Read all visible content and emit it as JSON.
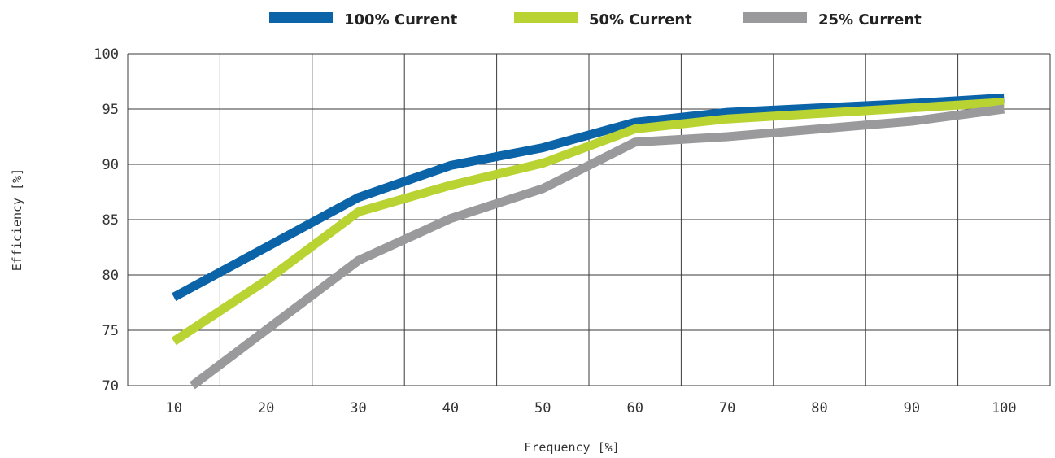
{
  "chart_data": {
    "type": "line",
    "xlabel": "Frequency [%]",
    "ylabel": "Efficiency [%]",
    "ylim": [
      70,
      100
    ],
    "y_ticks": [
      "70",
      "75",
      "80",
      "85",
      "90",
      "95",
      "100"
    ],
    "x_ticks": [
      "10",
      "20",
      "30",
      "40",
      "50",
      "60",
      "70",
      "80",
      "90",
      "100"
    ],
    "grid": true,
    "legend_position": "top",
    "series": [
      {
        "name": "100% Current",
        "color": "#0b63a8",
        "points": [
          [
            10,
            78.0
          ],
          [
            30,
            87.0
          ],
          [
            40,
            89.9
          ],
          [
            50,
            91.5
          ],
          [
            60,
            93.8
          ],
          [
            70,
            94.7
          ],
          [
            80,
            95.1
          ],
          [
            90,
            95.5
          ],
          [
            100,
            96.0
          ]
        ]
      },
      {
        "name": "50% Current",
        "color": "#b9d432",
        "points": [
          [
            10,
            74.0
          ],
          [
            20,
            79.5
          ],
          [
            30,
            85.7
          ],
          [
            40,
            88.1
          ],
          [
            50,
            90.1
          ],
          [
            60,
            93.2
          ],
          [
            70,
            94.1
          ],
          [
            80,
            94.6
          ],
          [
            90,
            95.1
          ],
          [
            100,
            95.6
          ]
        ]
      },
      {
        "name": "25% Current",
        "color": "#9a9a9c",
        "points": [
          [
            12,
            70.0
          ],
          [
            30,
            81.3
          ],
          [
            40,
            85.1
          ],
          [
            50,
            87.8
          ],
          [
            60,
            92.0
          ],
          [
            70,
            92.5
          ],
          [
            80,
            93.2
          ],
          [
            90,
            93.9
          ],
          [
            100,
            95.0
          ]
        ]
      }
    ]
  }
}
